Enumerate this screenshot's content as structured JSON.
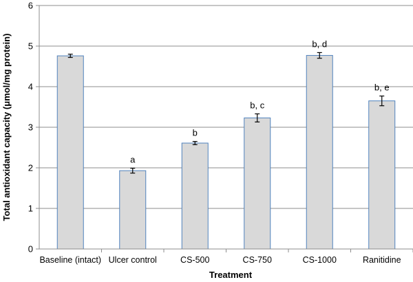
{
  "chart_data": {
    "type": "bar",
    "xlabel": "Treatment",
    "ylabel": "Total antioxidant capacity (μmol/mg protein)",
    "ylim": [
      0,
      6
    ],
    "yticks": [
      "0",
      "1",
      "2",
      "3",
      "4",
      "5",
      "6"
    ],
    "grid": true,
    "categories": [
      "Baseline (intact)",
      "Ulcer control",
      "CS-500",
      "CS-750",
      "CS-1000",
      "Ranitidine"
    ],
    "values": [
      4.76,
      1.93,
      2.61,
      3.23,
      4.77,
      3.65
    ],
    "errors": [
      0.04,
      0.06,
      0.04,
      0.1,
      0.07,
      0.12
    ],
    "annotations": [
      "",
      "a",
      "b",
      "b, c",
      "b, d",
      "b, e"
    ],
    "colors": {
      "bar_fill": "#d9d9d9",
      "bar_stroke": "#4f81bd",
      "grid": "#8c8c8c",
      "axis": "#8c8c8c",
      "error": "#000000"
    }
  }
}
